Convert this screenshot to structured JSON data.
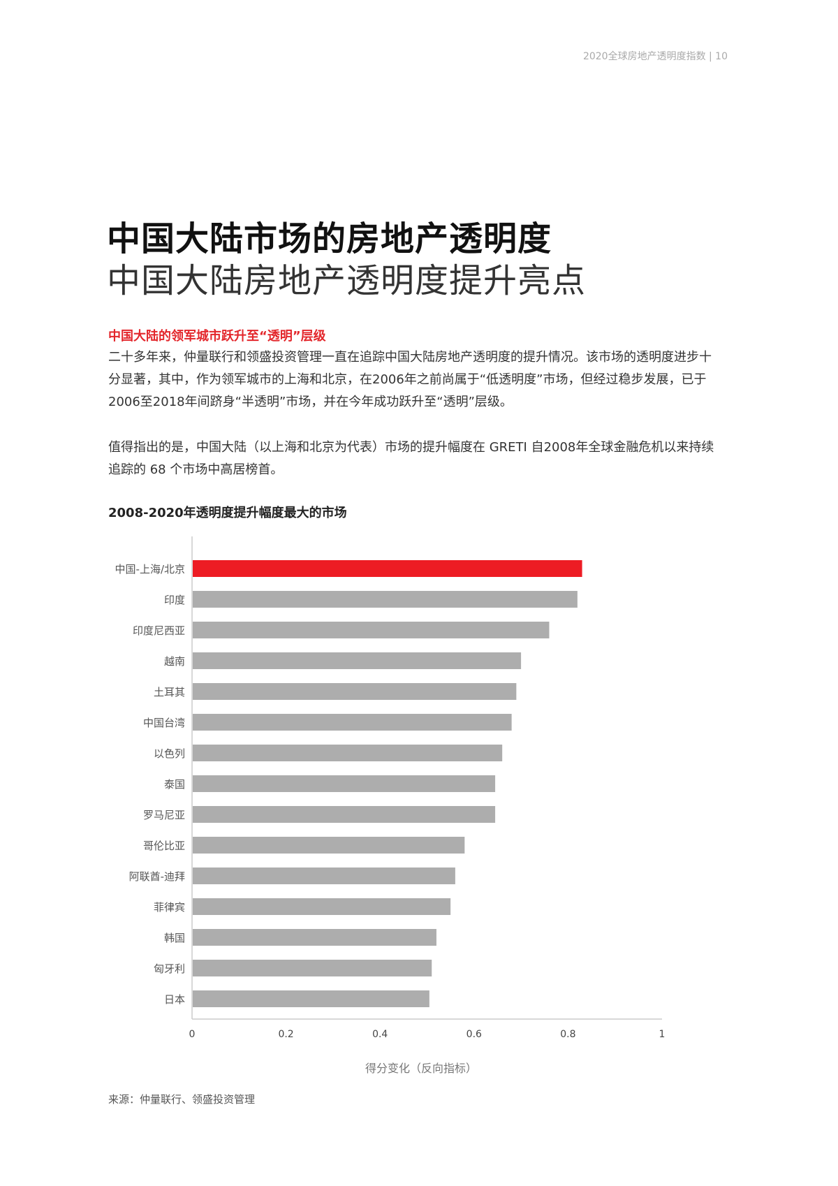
{
  "header": {
    "running_title": "2020全球房地产透明度指数 | 10"
  },
  "title_line1": "中国大陆市场的房地产透明度",
  "title_line2": "中国大陆房地产透明度提升亮点",
  "subheading": "中国大陆的领军城市跃升至“透明”层级",
  "paragraph1": "二十多年来，仲量联行和领盛投资管理一直在追踪中国大陆房地产透明度的提升情况。该市场的透明度进步十分显著，其中，作为领军城市的上海和北京，在2006年之前尚属于“低透明度”市场，但经过稳步发展，已于2006至2018年间跻身“半透明”市场，并在今年成功跃升至“透明”层级。",
  "paragraph2": "值得指出的是，中国大陆（以上海和北京为代表）市场的提升幅度在 GRETI 自2008年全球金融危机以来持续追踪的 68 个市场中高居榜首。",
  "source": "来源：仲量联行、领盛投资管理",
  "chart_data": {
    "type": "bar",
    "orientation": "horizontal",
    "title": "2008-2020年透明度提升幅度最大的市场",
    "xlabel": "得分变化（反向指标）",
    "ylabel": "",
    "xlim": [
      0,
      1
    ],
    "xticks": [
      "0",
      "0.2",
      "0.4",
      "0.6",
      "0.8",
      "1"
    ],
    "grid": false,
    "categories": [
      "中国-上海/北京",
      "印度",
      "印度尼西亚",
      "越南",
      "土耳其",
      "中国台湾",
      "以色列",
      "泰国",
      "罗马尼亚",
      "哥伦比亚",
      "阿联酋-迪拜",
      "菲律宾",
      "韩国",
      "匈牙利",
      "日本"
    ],
    "values": [
      0.83,
      0.82,
      0.76,
      0.7,
      0.69,
      0.68,
      0.66,
      0.645,
      0.645,
      0.58,
      0.56,
      0.55,
      0.52,
      0.51,
      0.505
    ],
    "colors": {
      "highlight": "#ED1C24",
      "default": "#ADADAD"
    },
    "highlight_index": 0
  }
}
